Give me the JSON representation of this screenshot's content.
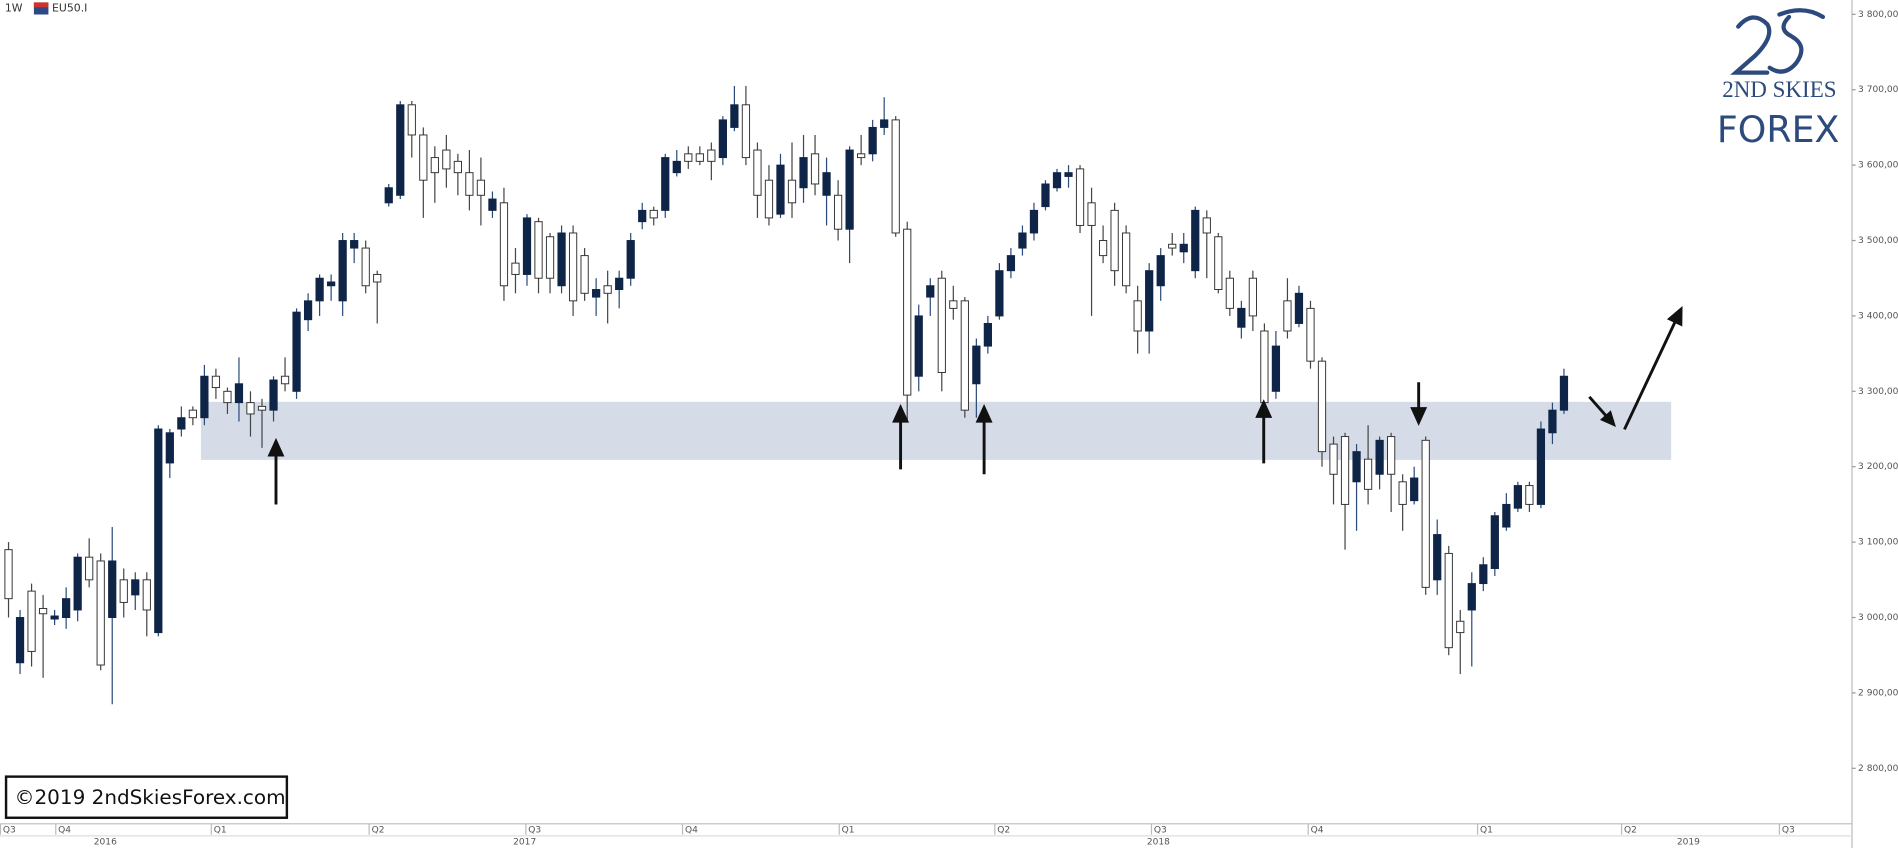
{
  "header": {
    "interval": "1W",
    "symbol": "EU50.I"
  },
  "logo": {
    "line1": "2ND SKIES",
    "line2": "FOREX"
  },
  "copyright": "©2019 2ndSkiesForex.com",
  "chart_data": {
    "type": "candlestick",
    "up_color": "#0f2548",
    "down_color": "#ffffff",
    "open": [
      3090,
      2940,
      3035,
      3012,
      2998,
      3000,
      3010,
      3080,
      3075,
      3000,
      3050,
      3030,
      3050,
      2980,
      3205,
      3250,
      3275,
      3265,
      3320,
      3300,
      3285,
      3285,
      3280,
      3275,
      3320,
      3300,
      3395,
      3420,
      3440,
      3420,
      3490,
      3490,
      3455,
      3550,
      3560,
      3680,
      3640,
      3610,
      3620,
      3605,
      3590,
      3580,
      3540,
      3550,
      3470,
      3455,
      3525,
      3505,
      3440,
      3510,
      3480,
      3425,
      3440,
      3435,
      3450,
      3525,
      3540,
      3540,
      3590,
      3615,
      3615,
      3620,
      3610,
      3650,
      3680,
      3620,
      3580,
      3535,
      3580,
      3570,
      3615,
      3560,
      3560,
      3515,
      3615,
      3615,
      3650,
      3660,
      3515,
      3320,
      3425,
      3450,
      3420,
      3420,
      3310,
      3360,
      3400,
      3460,
      3490,
      3510,
      3545,
      3570,
      3585,
      3595,
      3550,
      3500,
      3540,
      3510,
      3420,
      3380,
      3440,
      3495,
      3485,
      3460,
      3530,
      3505,
      3450,
      3385,
      3450,
      3380,
      3300,
      3420,
      3390,
      3410,
      3340,
      3230,
      3240,
      3180,
      3210,
      3190,
      3240,
      3180,
      3155,
      3235,
      3050,
      3085,
      2995,
      3010,
      3045,
      3065,
      3120,
      3145,
      3175,
      3150,
      3245,
      3275
    ],
    "high": [
      3100,
      3010,
      3045,
      3030,
      3010,
      3040,
      3085,
      3105,
      3085,
      3120,
      3065,
      3060,
      3060,
      3255,
      3250,
      3280,
      3280,
      3335,
      3330,
      3305,
      3345,
      3300,
      3290,
      3320,
      3345,
      3410,
      3430,
      3455,
      3455,
      3510,
      3510,
      3500,
      3460,
      3575,
      3685,
      3685,
      3650,
      3625,
      3640,
      3615,
      3620,
      3610,
      3565,
      3570,
      3490,
      3535,
      3530,
      3510,
      3520,
      3520,
      3490,
      3450,
      3460,
      3460,
      3510,
      3550,
      3545,
      3615,
      3620,
      3625,
      3625,
      3630,
      3665,
      3705,
      3705,
      3630,
      3600,
      3615,
      3630,
      3640,
      3640,
      3610,
      3580,
      3625,
      3640,
      3660,
      3690,
      3665,
      3525,
      3415,
      3450,
      3460,
      3440,
      3425,
      3370,
      3400,
      3470,
      3490,
      3520,
      3550,
      3580,
      3595,
      3600,
      3600,
      3570,
      3520,
      3550,
      3520,
      3440,
      3470,
      3490,
      3510,
      3510,
      3545,
      3540,
      3510,
      3460,
      3420,
      3460,
      3390,
      3380,
      3450,
      3440,
      3420,
      3345,
      3240,
      3245,
      3230,
      3255,
      3240,
      3245,
      3190,
      3200,
      3240,
      3130,
      3095,
      3010,
      3060,
      3080,
      3140,
      3165,
      3180,
      3180,
      3260,
      3285,
      3330
    ],
    "low": [
      3000,
      2925,
      2935,
      2920,
      2990,
      2985,
      2995,
      3040,
      2930,
      2885,
      3000,
      3010,
      2975,
      2975,
      3185,
      3240,
      3255,
      3255,
      3290,
      3270,
      3260,
      3240,
      3225,
      3260,
      3300,
      3290,
      3380,
      3400,
      3420,
      3400,
      3470,
      3430,
      3390,
      3545,
      3555,
      3610,
      3530,
      3550,
      3570,
      3560,
      3540,
      3520,
      3530,
      3420,
      3430,
      3440,
      3430,
      3430,
      3430,
      3400,
      3420,
      3400,
      3390,
      3410,
      3440,
      3515,
      3520,
      3530,
      3585,
      3595,
      3600,
      3580,
      3600,
      3645,
      3600,
      3530,
      3520,
      3530,
      3530,
      3550,
      3560,
      3520,
      3500,
      3470,
      3600,
      3605,
      3640,
      3505,
      3260,
      3300,
      3400,
      3300,
      3395,
      3265,
      3265,
      3350,
      3395,
      3450,
      3480,
      3500,
      3540,
      3565,
      3570,
      3510,
      3400,
      3470,
      3440,
      3430,
      3350,
      3350,
      3420,
      3480,
      3470,
      3450,
      3450,
      3430,
      3400,
      3370,
      3380,
      3280,
      3290,
      3370,
      3385,
      3330,
      3200,
      3150,
      3090,
      3115,
      3150,
      3170,
      3140,
      3115,
      3150,
      3030,
      3030,
      2950,
      2925,
      2935,
      3035,
      3055,
      3115,
      3140,
      3140,
      3145,
      3230,
      3270
    ],
    "close": [
      3025,
      3000,
      2955,
      3005,
      3002,
      3025,
      3080,
      3050,
      2937,
      3075,
      3020,
      3050,
      3010,
      3250,
      3245,
      3265,
      3265,
      3320,
      3305,
      3285,
      3310,
      3270,
      3275,
      3315,
      3310,
      3405,
      3420,
      3450,
      3445,
      3500,
      3500,
      3440,
      3445,
      3570,
      3680,
      3640,
      3580,
      3590,
      3595,
      3590,
      3560,
      3560,
      3555,
      3440,
      3455,
      3530,
      3450,
      3450,
      3510,
      3420,
      3430,
      3435,
      3430,
      3450,
      3500,
      3540,
      3530,
      3610,
      3605,
      3605,
      3605,
      3605,
      3660,
      3680,
      3610,
      3560,
      3530,
      3600,
      3550,
      3610,
      3575,
      3590,
      3515,
      3620,
      3610,
      3650,
      3660,
      3510,
      3295,
      3400,
      3440,
      3325,
      3410,
      3275,
      3360,
      3390,
      3460,
      3480,
      3510,
      3540,
      3575,
      3590,
      3590,
      3520,
      3520,
      3480,
      3460,
      3440,
      3380,
      3460,
      3480,
      3490,
      3495,
      3540,
      3510,
      3435,
      3410,
      3410,
      3400,
      3285,
      3360,
      3380,
      3430,
      3340,
      3220,
      3190,
      3150,
      3220,
      3170,
      3235,
      3190,
      3150,
      3185,
      3040,
      3110,
      2960,
      2980,
      3045,
      3070,
      3135,
      3150,
      3175,
      3150,
      3250,
      3275,
      3320
    ],
    "xlim": [
      -0.74,
      160
    ],
    "ylim": [
      2728,
      3819
    ],
    "yticks": [
      {
        "value": 2800,
        "label": "2 800,00"
      },
      {
        "value": 2900,
        "label": "2 900,00"
      },
      {
        "value": 3000,
        "label": "3 000,00"
      },
      {
        "value": 3100,
        "label": "3 100,00"
      },
      {
        "value": 3200,
        "label": "3 200,00"
      },
      {
        "value": 3300,
        "label": "3 300,00"
      },
      {
        "value": 3400,
        "label": "3 400,00"
      },
      {
        "value": 3500,
        "label": "3 500,00"
      },
      {
        "value": 3600,
        "label": "3 600,00"
      },
      {
        "value": 3700,
        "label": "3 700,00"
      },
      {
        "value": 3800,
        "label": "3 800,00"
      }
    ],
    "xticks": [
      {
        "value": -0.7,
        "label": "Q3"
      },
      {
        "value": 4.1,
        "label": "Q4"
      },
      {
        "value": 17.6,
        "label": "Q1"
      },
      {
        "value": 31.3,
        "label": "Q2"
      },
      {
        "value": 44.9,
        "label": "Q3"
      },
      {
        "value": 58.5,
        "label": "Q4"
      },
      {
        "value": 72.1,
        "label": "Q1"
      },
      {
        "value": 85.6,
        "label": "Q2"
      },
      {
        "value": 99.2,
        "label": "Q3"
      },
      {
        "value": 112.8,
        "label": "Q4"
      },
      {
        "value": 127.5,
        "label": "Q1"
      },
      {
        "value": 140,
        "label": "Q2"
      },
      {
        "value": 153.7,
        "label": "Q3"
      }
    ],
    "year_ticks": [
      {
        "value": 8.4,
        "label": "2016"
      },
      {
        "value": 44.8,
        "label": "2017"
      },
      {
        "value": 99.8,
        "label": "2018"
      },
      {
        "value": 145.8,
        "label": "2019"
      }
    ],
    "zone": {
      "ylim": [
        3209,
        3286
      ],
      "xlim": [
        16.7,
        144.3
      ],
      "color": "#d5dce8"
    }
  }
}
